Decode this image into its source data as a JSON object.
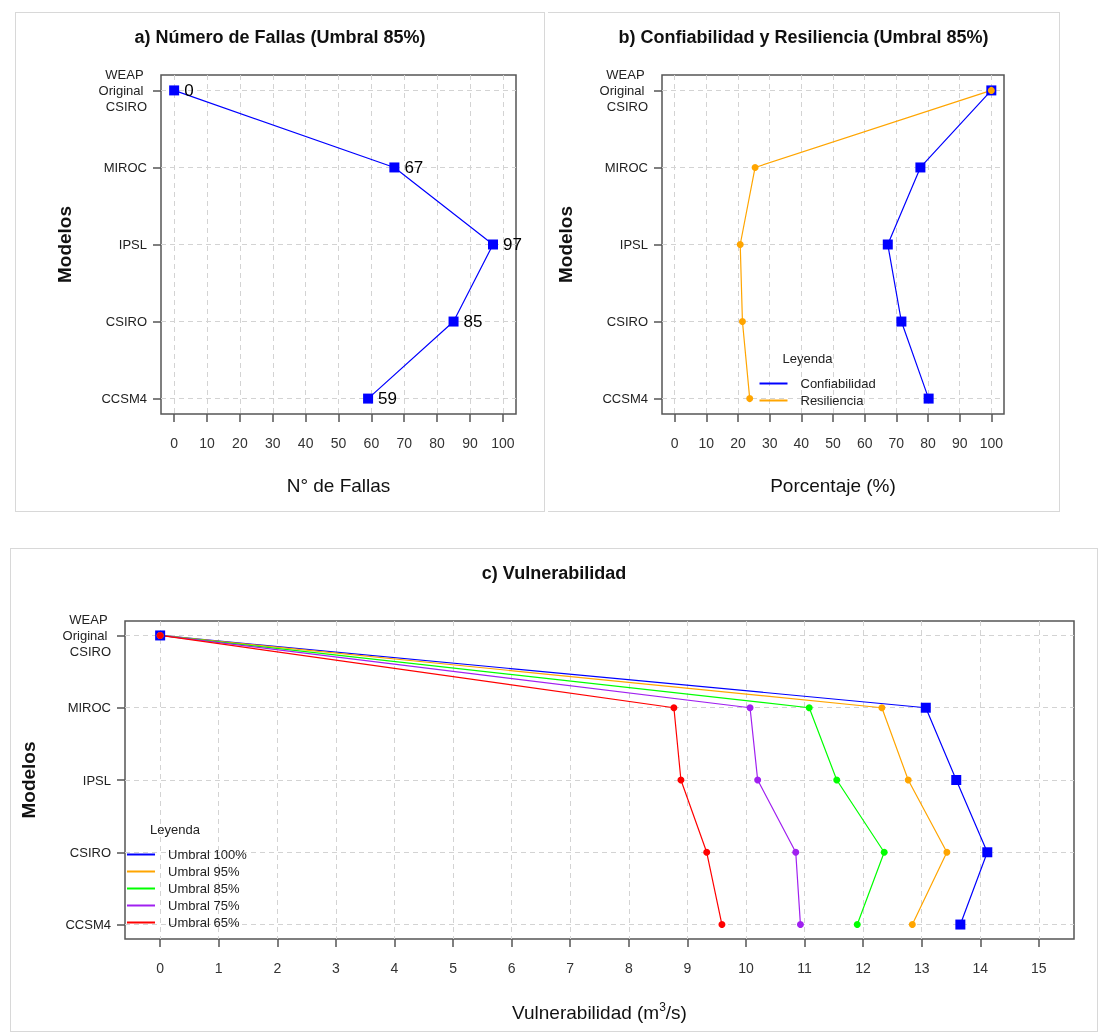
{
  "chart_data": [
    {
      "type": "line",
      "orientation": "horizontal",
      "title": "a) Número de Fallas (Umbral 85%)",
      "xlabel": "N° de Fallas",
      "ylabel": "Modelos",
      "categories": [
        "WEAP Original CSIRO",
        "MIROC",
        "IPSL",
        "CSIRO",
        "CCSM4"
      ],
      "values": [
        0,
        67,
        97,
        85,
        59
      ],
      "color": "#0000ff",
      "marker": "square",
      "data_labels": true,
      "xlim": [
        -4,
        104
      ],
      "xticks": [
        0,
        10,
        20,
        30,
        40,
        50,
        60,
        70,
        80,
        90,
        100
      ],
      "grid": true
    },
    {
      "type": "line",
      "orientation": "horizontal",
      "title": "b) Confiabilidad y Resiliencia (Umbral 85%)",
      "xlabel": "Porcentaje (%)",
      "ylabel": "Modelos",
      "categories": [
        "WEAP Original CSIRO",
        "MIROC",
        "IPSL",
        "CSIRO",
        "CCSM4"
      ],
      "series": [
        {
          "name": "Confiabilidad",
          "color": "#0000ff",
          "marker": "square",
          "values": [
            100,
            77.6,
            67.3,
            71.6,
            80.2
          ]
        },
        {
          "name": "Resiliencia",
          "color": "#ffa500",
          "marker": "circle",
          "values": [
            100,
            25.4,
            20.7,
            21.4,
            23.7
          ]
        }
      ],
      "legend_title": "Leyenda",
      "legend": "bottom",
      "xlim": [
        -4,
        104
      ],
      "xticks": [
        0,
        10,
        20,
        30,
        40,
        50,
        60,
        70,
        80,
        90,
        100
      ],
      "grid": true
    },
    {
      "type": "line",
      "orientation": "horizontal",
      "title": "c) Vulnerabilidad",
      "xlabel": "Vulnerabilidad (m$^{3}$/s)",
      "ylabel": "Modelos",
      "categories": [
        "WEAP Original CSIRO",
        "MIROC",
        "IPSL",
        "CSIRO",
        "CCSM4"
      ],
      "series": [
        {
          "name": "Umbral 100%",
          "color": "#0000ff",
          "marker": "square",
          "values": [
            0,
            13.07,
            13.59,
            14.12,
            13.66
          ]
        },
        {
          "name": "Umbral 95%",
          "color": "#ffa500",
          "marker": "circle",
          "values": [
            0,
            12.32,
            12.77,
            13.43,
            12.84
          ]
        },
        {
          "name": "Umbral 85%",
          "color": "#00ff00",
          "marker": "circle",
          "values": [
            0,
            11.08,
            11.55,
            12.36,
            11.9
          ]
        },
        {
          "name": "Umbral 75%",
          "color": "#a020f0",
          "marker": "circle",
          "values": [
            0,
            10.07,
            10.2,
            10.85,
            10.93
          ]
        },
        {
          "name": "Umbral 65%",
          "color": "#ff0000",
          "marker": "circle",
          "values": [
            0,
            8.77,
            8.89,
            9.33,
            9.59
          ]
        }
      ],
      "legend_title": "Leyenda",
      "legend": "bottom left",
      "xlim": [
        -0.6,
        15.6
      ],
      "xticks": [
        0,
        1,
        2,
        3,
        4,
        5,
        6,
        7,
        8,
        9,
        10,
        11,
        12,
        13,
        14,
        15
      ],
      "grid": true
    }
  ]
}
